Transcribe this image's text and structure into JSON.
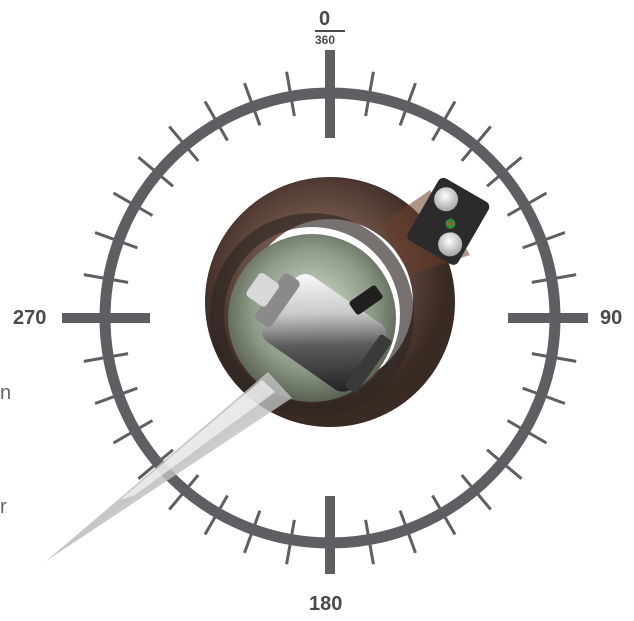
{
  "compass": {
    "label_0": "0",
    "label_360": "360",
    "label_90": "90",
    "label_180": "180",
    "label_270": "270",
    "tick_step_degrees": 10,
    "ring_color": "#5f5f63"
  },
  "edge_text": {
    "left_fragment_1": "n",
    "left_fragment_2": "r"
  },
  "colors": {
    "outer_ring": "#5f5f63",
    "tube": "#6e5448",
    "cable_box": "#2b2b2b",
    "cable_strand": "#e8e8e8",
    "fiber_green": "#2f8f3a"
  }
}
